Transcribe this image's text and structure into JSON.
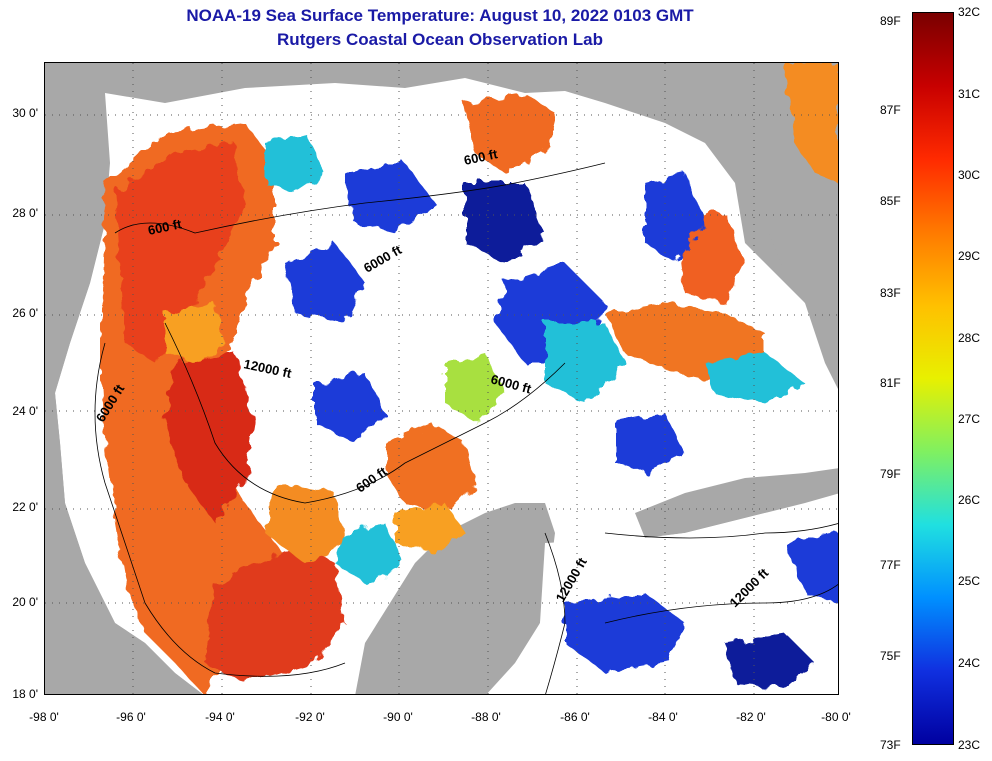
{
  "header": {
    "title": "NOAA-19 Sea Surface Temperature:  August 10, 2022 0103 GMT",
    "subtitle": "Rutgers Coastal Ocean Observation Lab"
  },
  "map": {
    "lat_labels": [
      "30 0'",
      "28 0'",
      "26 0'",
      "24 0'",
      "22 0'",
      "20 0'",
      "18 0'"
    ],
    "lon_labels": [
      "-98 0'",
      "-96 0'",
      "-94 0'",
      "-92 0'",
      "-90 0'",
      "-88 0'",
      "-86 0'",
      "-84 0'",
      "-82 0'",
      "-80 0'"
    ],
    "contour_labels": [
      "600 ft",
      "600 ft",
      "6000 ft",
      "12000 ft",
      "6000 ft",
      "6000 ft",
      "600 ft",
      "12000 ft",
      "12000 ft"
    ],
    "colors": {
      "land": "#a8a8a8",
      "cloud": "#ffffff",
      "warm": "#f05a1e",
      "hot": "#d81e1e",
      "mid": "#f8a020",
      "cool": "#1a3ad8",
      "cold": "#0a1a9a",
      "teal": "#20c0d8",
      "green": "#a8e040"
    }
  },
  "colorbar": {
    "fahrenheit_labels": [
      "89F",
      "87F",
      "85F",
      "83F",
      "81F",
      "79F",
      "77F",
      "75F",
      "73F"
    ],
    "celsius_labels": [
      "32C",
      "31C",
      "30C",
      "29C",
      "28C",
      "27C",
      "26C",
      "25C",
      "24C",
      "23C"
    ],
    "colors": [
      "#7a0000",
      "#c80000",
      "#ff2a00",
      "#ff7a00",
      "#ffc000",
      "#e8f000",
      "#80f060",
      "#20e0e0",
      "#0090ff",
      "#1030e0",
      "#0000a0"
    ]
  }
}
